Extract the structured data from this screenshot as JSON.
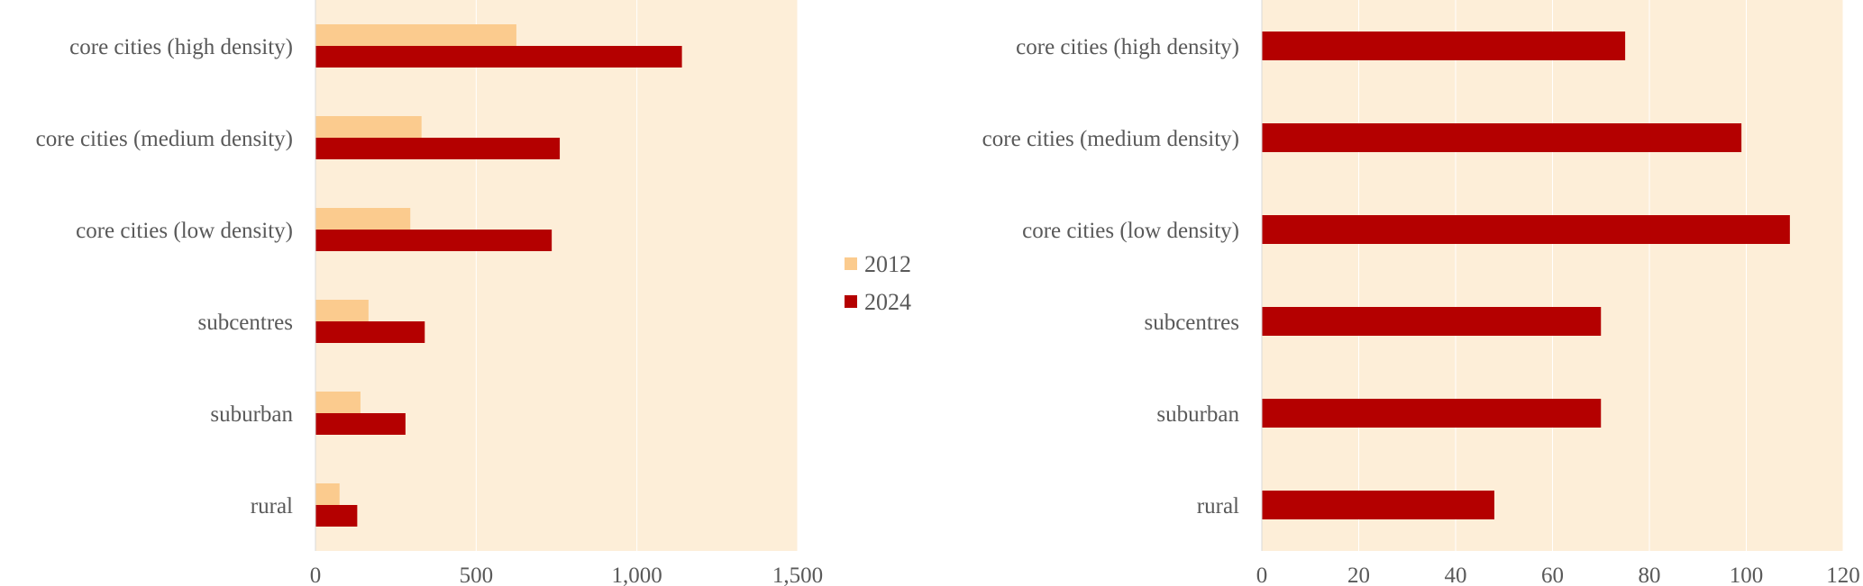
{
  "colors": {
    "plot_background": "#fdeed8",
    "gridline": "#ffffff",
    "axis_line": "#d9d9d9",
    "text": "#595959",
    "series_2012": "#fbcb8e",
    "series_2024": "#b40000"
  },
  "legend": {
    "placement": "center",
    "items": [
      {
        "label": "2012",
        "color": "#fbcb8e"
      },
      {
        "label": "2024",
        "color": "#b40000"
      }
    ]
  },
  "chart_data": [
    {
      "type": "bar",
      "orientation": "horizontal",
      "title": "",
      "xlabel": "",
      "ylabel": "",
      "categories": [
        "core cities (high density)",
        "core cities (medium density)",
        "core cities (low density)",
        "subcentres",
        "suburban",
        "rural"
      ],
      "series": [
        {
          "name": "2012",
          "values": [
            625,
            330,
            295,
            165,
            140,
            75
          ]
        },
        {
          "name": "2024",
          "values": [
            1140,
            760,
            735,
            340,
            280,
            130
          ]
        }
      ],
      "xlim": [
        0,
        1500
      ],
      "xticks": [
        0,
        500,
        1000,
        1500
      ],
      "xtick_labels": [
        "0",
        "500",
        "1,000",
        "1,500"
      ],
      "grid": true
    },
    {
      "type": "bar",
      "orientation": "horizontal",
      "title": "",
      "xlabel": "",
      "ylabel": "",
      "categories": [
        "core cities (high density)",
        "core cities (medium density)",
        "core cities (low density)",
        "subcentres",
        "suburban",
        "rural"
      ],
      "series": [
        {
          "values": [
            75,
            99,
            109,
            70,
            70,
            48
          ]
        }
      ],
      "xlim": [
        0,
        120
      ],
      "xticks": [
        0,
        20,
        40,
        60,
        80,
        100,
        120
      ],
      "xtick_labels": [
        "0",
        "20",
        "40",
        "60",
        "80",
        "100",
        "120"
      ],
      "grid": true
    }
  ]
}
